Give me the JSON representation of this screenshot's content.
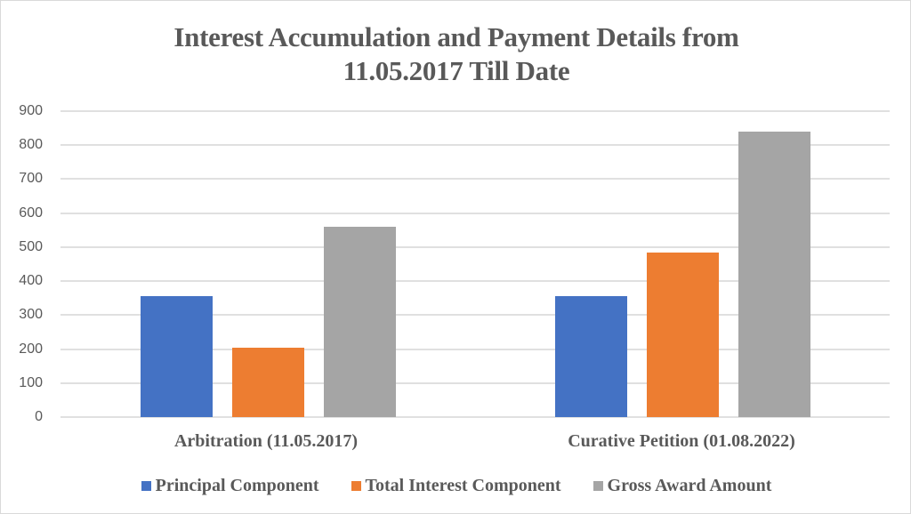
{
  "chart_data": {
    "type": "bar",
    "title": "Interest Accumulation and Payment Details from 11.05.2017 Till Date",
    "title_lines": [
      "Interest Accumulation and Payment Details from",
      "11.05.2017 Till Date"
    ],
    "xlabel": "",
    "ylabel": "",
    "ylim": [
      0,
      900
    ],
    "yticks": [
      0,
      100,
      200,
      300,
      400,
      500,
      600,
      700,
      800,
      900
    ],
    "grid": true,
    "legend_position": "bottom",
    "categories": [
      "Arbitration (11.05.2017)",
      "Curative Petition (01.08.2022)"
    ],
    "series": [
      {
        "name": "Principal Component",
        "color": "#4472c4",
        "values": [
          355,
          355
        ]
      },
      {
        "name": "Total Interest Component",
        "color": "#ed7d31",
        "values": [
          205,
          485
        ]
      },
      {
        "name": "Gross Award Amount",
        "color": "#a5a5a5",
        "values": [
          560,
          840
        ]
      }
    ]
  }
}
